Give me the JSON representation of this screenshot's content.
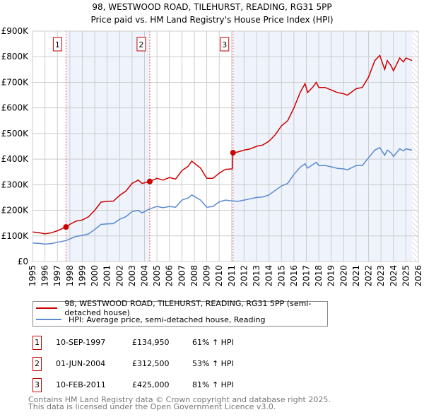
{
  "chart_data": {
    "type": "line",
    "title": "98, WESTWOOD ROAD, TILEHURST, READING, RG31 5PP",
    "subtitle": "Price paid vs. HM Land Registry's House Price Index (HPI)",
    "xlim": [
      1995,
      2026
    ],
    "ylim": [
      0,
      900000
    ],
    "y_ticks": [
      {
        "value": 0,
        "label": "£0"
      },
      {
        "value": 100000,
        "label": "£100K"
      },
      {
        "value": 200000,
        "label": "£200K"
      },
      {
        "value": 300000,
        "label": "£300K"
      },
      {
        "value": 400000,
        "label": "£400K"
      },
      {
        "value": 500000,
        "label": "£500K"
      },
      {
        "value": 600000,
        "label": "£600K"
      },
      {
        "value": 700000,
        "label": "£700K"
      },
      {
        "value": 800000,
        "label": "£800K"
      },
      {
        "value": 900000,
        "label": "£900K"
      }
    ],
    "x_ticks": [
      "1995",
      "1996",
      "1997",
      "1998",
      "1999",
      "2000",
      "2001",
      "2002",
      "2003",
      "2004",
      "2005",
      "2006",
      "2007",
      "2008",
      "2009",
      "2010",
      "2011",
      "2012",
      "2013",
      "2014",
      "2015",
      "2016",
      "2017",
      "2018",
      "2019",
      "2020",
      "2021",
      "2022",
      "2023",
      "2024",
      "2025",
      "2026"
    ],
    "grid": true,
    "series": [
      {
        "name": "98, WESTWOOD ROAD, TILEHURST, READING, RG31 5PP (semi-detached house)",
        "color": "#cc0000",
        "x": [
          1995,
          1995.5,
          1996,
          1996.5,
          1997,
          1997.7,
          1998,
          1998.5,
          1999,
          1999.5,
          2000,
          2000.5,
          2001,
          2001.5,
          2002,
          2002.5,
          2003,
          2003.5,
          2003.8,
          2004.4,
          2005,
          2005.5,
          2006,
          2006.5,
          2007,
          2007.5,
          2007.8,
          2008.5,
          2009,
          2009.5,
          2010,
          2010.5,
          2011.05,
          2011.1,
          2011.5,
          2012,
          2012.5,
          2013,
          2013.5,
          2014,
          2014.5,
          2015,
          2015.5,
          2016,
          2016.5,
          2016.9,
          2017.1,
          2017.5,
          2017.8,
          2018,
          2018.5,
          2019,
          2019.5,
          2020,
          2020.3,
          2021,
          2021.5,
          2022,
          2022.5,
          2022.9,
          2023.3,
          2023.5,
          2023.8,
          2024,
          2024.5,
          2024.8,
          2025,
          2025.5
        ],
        "values": [
          115000,
          113000,
          108000,
          112000,
          120000,
          134950,
          145000,
          158000,
          162000,
          175000,
          200000,
          232000,
          235000,
          236000,
          258000,
          275000,
          305000,
          318000,
          305000,
          312500,
          325000,
          318000,
          328000,
          322000,
          355000,
          372000,
          392000,
          365000,
          325000,
          325000,
          345000,
          360000,
          362000,
          425000,
          428000,
          435000,
          440000,
          450000,
          455000,
          470000,
          495000,
          530000,
          550000,
          600000,
          660000,
          695000,
          660000,
          680000,
          700000,
          680000,
          680000,
          670000,
          660000,
          655000,
          650000,
          675000,
          680000,
          720000,
          785000,
          805000,
          750000,
          785000,
          765000,
          745000,
          795000,
          780000,
          795000,
          785000
        ]
      },
      {
        "name": "HPI: Average price, semi-detached house, Reading",
        "color": "#5b8bd0",
        "x": [
          1995,
          1995.5,
          1996,
          1996.5,
          1997,
          1997.7,
          1998,
          1998.5,
          1999,
          1999.5,
          2000,
          2000.5,
          2001,
          2001.5,
          2002,
          2002.5,
          2003,
          2003.5,
          2003.8,
          2004.4,
          2005,
          2005.5,
          2006,
          2006.5,
          2007,
          2007.5,
          2007.8,
          2008.5,
          2009,
          2009.5,
          2010,
          2010.5,
          2011.05,
          2011.1,
          2011.5,
          2012,
          2012.5,
          2013,
          2013.5,
          2014,
          2014.5,
          2015,
          2015.5,
          2016,
          2016.5,
          2016.9,
          2017.1,
          2017.5,
          2017.8,
          2018,
          2018.5,
          2019,
          2019.5,
          2020,
          2020.3,
          2021,
          2021.5,
          2022,
          2022.5,
          2022.9,
          2023.3,
          2023.5,
          2023.8,
          2024,
          2024.5,
          2024.8,
          2025,
          2025.5
        ],
        "values": [
          72000,
          71000,
          68000,
          70000,
          75000,
          82000,
          88000,
          98000,
          102000,
          108000,
          125000,
          145000,
          147000,
          148000,
          165000,
          175000,
          195000,
          200000,
          190000,
          205000,
          215000,
          210000,
          215000,
          212000,
          240000,
          248000,
          260000,
          240000,
          212000,
          215000,
          233000,
          240000,
          237000,
          237000,
          235000,
          240000,
          245000,
          250000,
          252000,
          260000,
          278000,
          295000,
          305000,
          340000,
          368000,
          382000,
          365000,
          378000,
          388000,
          375000,
          375000,
          370000,
          364000,
          362000,
          358000,
          375000,
          375000,
          405000,
          435000,
          445000,
          415000,
          435000,
          425000,
          410000,
          440000,
          432000,
          440000,
          435000
        ]
      }
    ],
    "sales": [
      {
        "label": "1",
        "x": 1997.69,
        "value": 134950
      },
      {
        "label": "2",
        "x": 2004.42,
        "value": 312500
      },
      {
        "label": "3",
        "x": 2011.11,
        "value": 425000
      }
    ],
    "hatched_from": 2025.5,
    "legend_placement": "bottom"
  },
  "legend": {
    "property": "98, WESTWOOD ROAD, TILEHURST, READING, RG31 5PP (semi-detached house)",
    "hpi": "HPI: Average price, semi-detached house, Reading"
  },
  "transactions": [
    {
      "num": "1",
      "date": "10-SEP-1997",
      "price": "£134,950",
      "hpi": "61% ↑ HPI"
    },
    {
      "num": "2",
      "date": "01-JUN-2004",
      "price": "£312,500",
      "hpi": "53% ↑ HPI"
    },
    {
      "num": "3",
      "date": "10-FEB-2011",
      "price": "£425,000",
      "hpi": "81% ↑ HPI"
    }
  ],
  "footer": {
    "line1": "Contains HM Land Registry data © Crown copyright and database right 2025.",
    "line2": "This data is licensed under the Open Government Licence v3.0."
  }
}
